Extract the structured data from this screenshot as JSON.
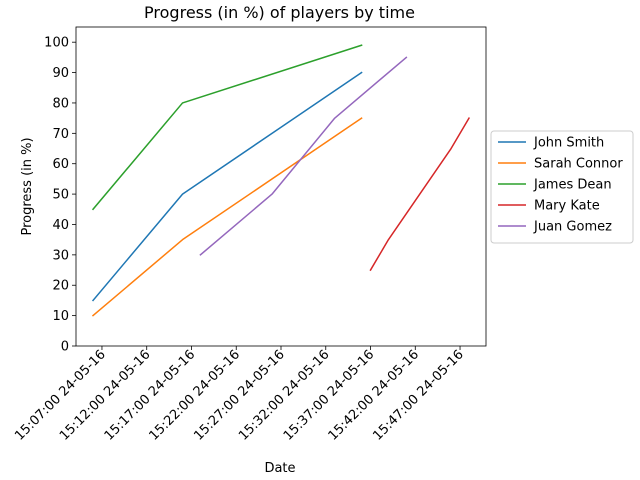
{
  "chart_data": {
    "type": "line",
    "title": "Progress (in %) of players by time",
    "xlabel": "Date",
    "ylabel": "Progress (in %)",
    "ylim": [
      0,
      105
    ],
    "xlim": [
      "2016-05-24 15:04:06",
      "2016-05-24 15:49:54"
    ],
    "grid": false,
    "legend_position": "outside right",
    "x_tick_labels": [
      "15:07:00 24-05-16",
      "15:12:00 24-05-16",
      "15:17:00 24-05-16",
      "15:22:00 24-05-16",
      "15:27:00 24-05-16",
      "15:32:00 24-05-16",
      "15:37:00 24-05-16",
      "15:42:00 24-05-16",
      "15:47:00 24-05-16"
    ],
    "x_tick_values": [
      "2016-05-24 15:07:00",
      "2016-05-24 15:12:00",
      "2016-05-24 15:17:00",
      "2016-05-24 15:22:00",
      "2016-05-24 15:27:00",
      "2016-05-24 15:32:00",
      "2016-05-24 15:37:00",
      "2016-05-24 15:42:00",
      "2016-05-24 15:47:00"
    ],
    "y_ticks": [
      0,
      10,
      20,
      30,
      40,
      50,
      60,
      70,
      80,
      90,
      100
    ],
    "series": [
      {
        "name": "John Smith",
        "color": "#1f77b4",
        "points": [
          {
            "x": "2016-05-24 15:06:00",
            "y": 15
          },
          {
            "x": "2016-05-24 15:16:00",
            "y": 50
          },
          {
            "x": "2016-05-24 15:36:00",
            "y": 90
          }
        ]
      },
      {
        "name": "Sarah Connor",
        "color": "#ff7f0e",
        "points": [
          {
            "x": "2016-05-24 15:06:00",
            "y": 10
          },
          {
            "x": "2016-05-24 15:16:00",
            "y": 35
          },
          {
            "x": "2016-05-24 15:36:00",
            "y": 75
          }
        ]
      },
      {
        "name": "James Dean",
        "color": "#2ca02c",
        "points": [
          {
            "x": "2016-05-24 15:06:00",
            "y": 45
          },
          {
            "x": "2016-05-24 15:16:00",
            "y": 80
          },
          {
            "x": "2016-05-24 15:36:00",
            "y": 99
          }
        ]
      },
      {
        "name": "Mary Kate",
        "color": "#d62728",
        "points": [
          {
            "x": "2016-05-24 15:37:00",
            "y": 25
          },
          {
            "x": "2016-05-24 15:39:00",
            "y": 35
          },
          {
            "x": "2016-05-24 15:46:00",
            "y": 65
          },
          {
            "x": "2016-05-24 15:48:00",
            "y": 75
          }
        ]
      },
      {
        "name": "Juan Gomez",
        "color": "#9467bd",
        "points": [
          {
            "x": "2016-05-24 15:18:00",
            "y": 30
          },
          {
            "x": "2016-05-24 15:26:00",
            "y": 50
          },
          {
            "x": "2016-05-24 15:33:00",
            "y": 75
          },
          {
            "x": "2016-05-24 15:41:00",
            "y": 95
          }
        ]
      }
    ]
  }
}
